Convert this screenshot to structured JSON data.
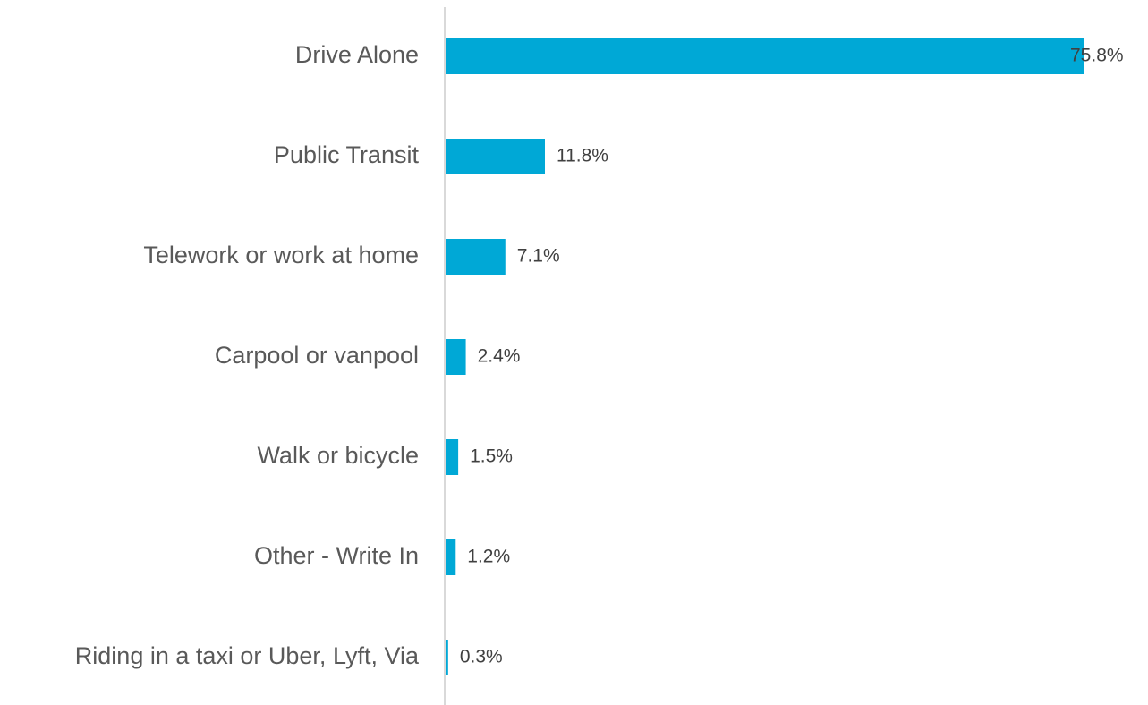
{
  "chart_data": {
    "type": "hbar",
    "categories": [
      "Drive Alone",
      "Public Transit",
      "Telework or work at home",
      "Carpool or vanpool",
      "Walk or bicycle",
      "Other - Write In",
      "Riding in a taxi or Uber, Lyft, Via"
    ],
    "values": [
      75.8,
      11.8,
      7.1,
      2.4,
      1.5,
      1.2,
      0.3
    ],
    "value_labels": [
      "75.8%",
      "11.8%",
      "7.1%",
      "2.4%",
      "1.5%",
      "1.2%",
      "0.3%"
    ],
    "color": "#00a8d6"
  }
}
